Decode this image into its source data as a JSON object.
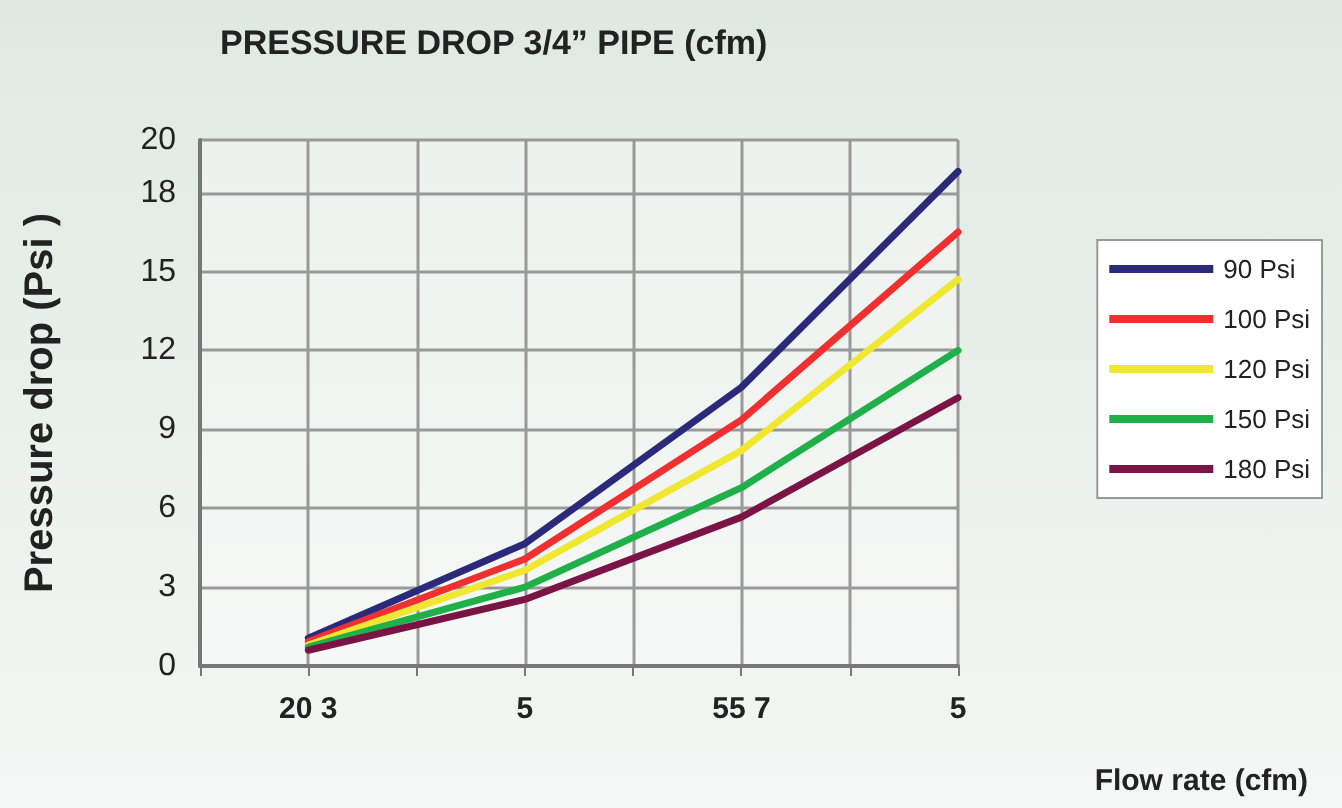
{
  "chart_data": {
    "type": "line",
    "title": "PRESSURE DROP 3/4” PIPE (cfm)",
    "xlabel": "Flow rate (cfm)",
    "ylabel": "Pressure drop (Psi )",
    "categories": [
      null,
      "20 3",
      null,
      "5",
      null,
      "55 7",
      null,
      "5"
    ],
    "series": [
      {
        "name": "90 Psi",
        "color": "#2b2a7a",
        "values": [
          null,
          1.06,
          null,
          4.65,
          null,
          10.6,
          null,
          18.8
        ]
      },
      {
        "name": "100 Psi",
        "color": "#f03030",
        "values": [
          null,
          0.93,
          null,
          4.07,
          null,
          9.36,
          null,
          16.5
        ]
      },
      {
        "name": "120 Psi",
        "color": "#f0e830",
        "values": [
          null,
          0.8,
          null,
          3.64,
          null,
          8.19,
          null,
          14.7
        ]
      },
      {
        "name": "150 Psi",
        "color": "#20b04a",
        "values": [
          null,
          0.72,
          null,
          3.0,
          null,
          6.78,
          null,
          12.0
        ]
      },
      {
        "name": "180 Psi",
        "color": "#7a1445",
        "values": [
          null,
          0.6,
          null,
          2.53,
          null,
          5.66,
          null,
          10.2
        ]
      }
    ],
    "ylim": [
      0,
      20
    ],
    "yticks": [
      0,
      3,
      6,
      9,
      12,
      15,
      18,
      20
    ],
    "grid": true,
    "legend": "right",
    "marker": "none",
    "line_style": "solid"
  }
}
